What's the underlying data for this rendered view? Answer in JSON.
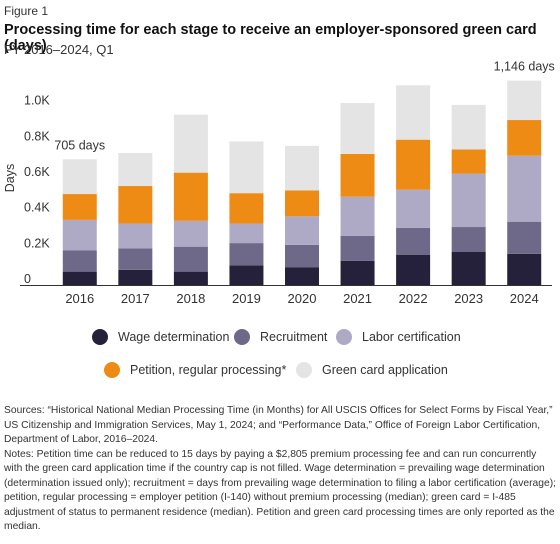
{
  "figure_label": "Figure 1",
  "chart_data": {
    "type": "bar",
    "stacked": true,
    "title": "Processing time for each stage to receive an employer-sponsored green card (days)",
    "subtitle": "FY 2016–2024, Q1",
    "xlabel": "",
    "ylabel": "Days",
    "ylim": [
      0,
      1200
    ],
    "yticks": [
      0,
      200,
      400,
      600,
      800,
      1000
    ],
    "ytick_labels": [
      "0",
      "0.2K",
      "0.4K",
      "0.6K",
      "0.8K",
      "1.0K"
    ],
    "categories": [
      "2016",
      "2017",
      "2018",
      "2019",
      "2020",
      "2021",
      "2022",
      "2023",
      "2024"
    ],
    "series": [
      {
        "name": "Wage determination",
        "color": "#25213a",
        "values": [
          75,
          85,
          75,
          110,
          100,
          135,
          170,
          185,
          175
        ]
      },
      {
        "name": "Recruitment",
        "color": "#6f6989",
        "values": [
          120,
          120,
          140,
          125,
          125,
          140,
          150,
          140,
          180
        ]
      },
      {
        "name": "Labor certification",
        "color": "#aeaac6",
        "values": [
          170,
          140,
          145,
          110,
          160,
          220,
          215,
          300,
          370
        ]
      },
      {
        "name": "Petition, regular processing*",
        "color": "#ee8b14",
        "values": [
          145,
          210,
          270,
          170,
          145,
          240,
          280,
          135,
          200
        ]
      },
      {
        "name": "Green card application",
        "color": "#e4e4e4",
        "values": [
          195,
          185,
          325,
          290,
          250,
          285,
          305,
          250,
          221
        ]
      }
    ],
    "annotations": [
      {
        "category": "2016",
        "text": "705 days"
      },
      {
        "category": "2024",
        "text": "1,146 days"
      }
    ],
    "legend_position": "bottom",
    "grid": false
  },
  "notes": {
    "sources": "Sources: “Historical National Median Processing Time (in Months) for All USCIS Offices for Select Forms by Fiscal Year,” US Citizenship and Immigration Services, May 1, 2024; and “Performance Data,” Office of Foreign Labor Certification, Department of Labor, 2016–2024.",
    "notes": "Notes: Petition time can be reduced to 15 days by paying a $2,805 premium processing fee and can run concurrently with the green card application time if the country cap is not filled. Wage determination = prevailing wage determination (determination issued only); recruitment = days from prevailing wage determination to filing a labor certification (average); petition, regular processing = employer petition (I-140) without premium processing (median); green card = I-485 adjustment of status to permanent residence (median). Petition and green card processing times are only reported as the median."
  }
}
